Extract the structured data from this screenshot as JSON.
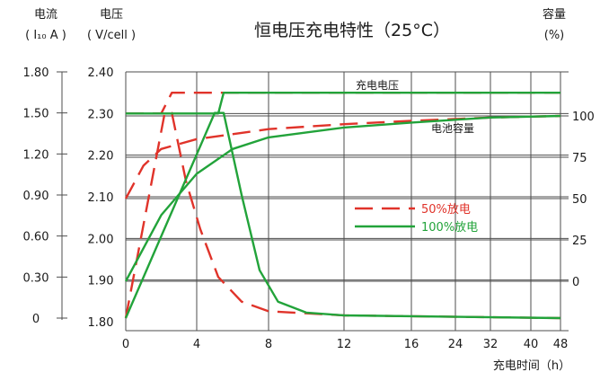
{
  "chart_data": {
    "type": "line",
    "title": "恒电压充电特性（25°C）",
    "current_axis": {
      "label_line1": "电流",
      "label_line2": "( I₁₀ A )",
      "ticks": [
        "1.80",
        "1.50",
        "1.20",
        "0.90",
        "0.60",
        "0.30",
        "0"
      ],
      "range": [
        0,
        1.8
      ]
    },
    "voltage_axis": {
      "label_line1": "电压",
      "label_line2": "( V/cell )",
      "ticks": [
        "2.40",
        "2.30",
        "2.20",
        "2.10",
        "2.00",
        "1.90",
        "1.80"
      ],
      "range": [
        1.8,
        2.4
      ]
    },
    "capacity_axis": {
      "label_line1": "容量",
      "label_line2": "(%)",
      "ticks": [
        "100",
        "75",
        "50",
        "25",
        "0"
      ],
      "range": [
        0,
        100
      ]
    },
    "x_axis": {
      "label": "充电时间（h）",
      "ticks": [
        "0",
        "4",
        "8",
        "12",
        "16",
        "24",
        "32",
        "40",
        "48"
      ],
      "note": "non-linear time scale"
    },
    "annotations": {
      "charge_voltage": "充电电压",
      "battery_capacity": "电池容量"
    },
    "grid": true,
    "legend_position": "center-right",
    "series": [
      {
        "name": "50%放电",
        "style": "dashed",
        "color": "#e0332a",
        "voltage_curve": [
          [
            0,
            2.3
          ],
          [
            2,
            2.3
          ],
          [
            2.6,
            2.35
          ],
          [
            48,
            2.35
          ]
        ],
        "current_curve": [
          [
            0,
            0
          ],
          [
            2.2,
            1.5
          ],
          [
            2.6,
            1.5
          ],
          [
            3.4,
            1.0
          ],
          [
            4.2,
            0.65
          ],
          [
            5.2,
            0.3
          ],
          [
            6.5,
            0.12
          ],
          [
            8,
            0.05
          ],
          [
            12,
            0.02
          ],
          [
            48,
            0.0
          ]
        ],
        "capacity_curve": [
          [
            0,
            50
          ],
          [
            1,
            70
          ],
          [
            2,
            80
          ],
          [
            4,
            86
          ],
          [
            8,
            92
          ],
          [
            12,
            95
          ],
          [
            16,
            97
          ],
          [
            32,
            99
          ],
          [
            48,
            100
          ]
        ]
      },
      {
        "name": "100%放电",
        "style": "solid",
        "color": "#22a33a",
        "voltage_curve": [
          [
            0,
            2.3
          ],
          [
            5.2,
            2.3
          ],
          [
            5.5,
            2.35
          ],
          [
            48,
            2.35
          ]
        ],
        "current_curve": [
          [
            0,
            0
          ],
          [
            5,
            1.5
          ],
          [
            5.5,
            1.5
          ],
          [
            6.5,
            0.9
          ],
          [
            7.5,
            0.35
          ],
          [
            8.5,
            0.12
          ],
          [
            10,
            0.04
          ],
          [
            12,
            0.02
          ],
          [
            48,
            0.0
          ]
        ],
        "capacity_curve": [
          [
            0,
            0
          ],
          [
            2,
            40
          ],
          [
            4,
            65
          ],
          [
            6,
            80
          ],
          [
            8,
            87
          ],
          [
            12,
            93
          ],
          [
            16,
            96
          ],
          [
            32,
            99
          ],
          [
            48,
            100
          ]
        ]
      }
    ]
  }
}
